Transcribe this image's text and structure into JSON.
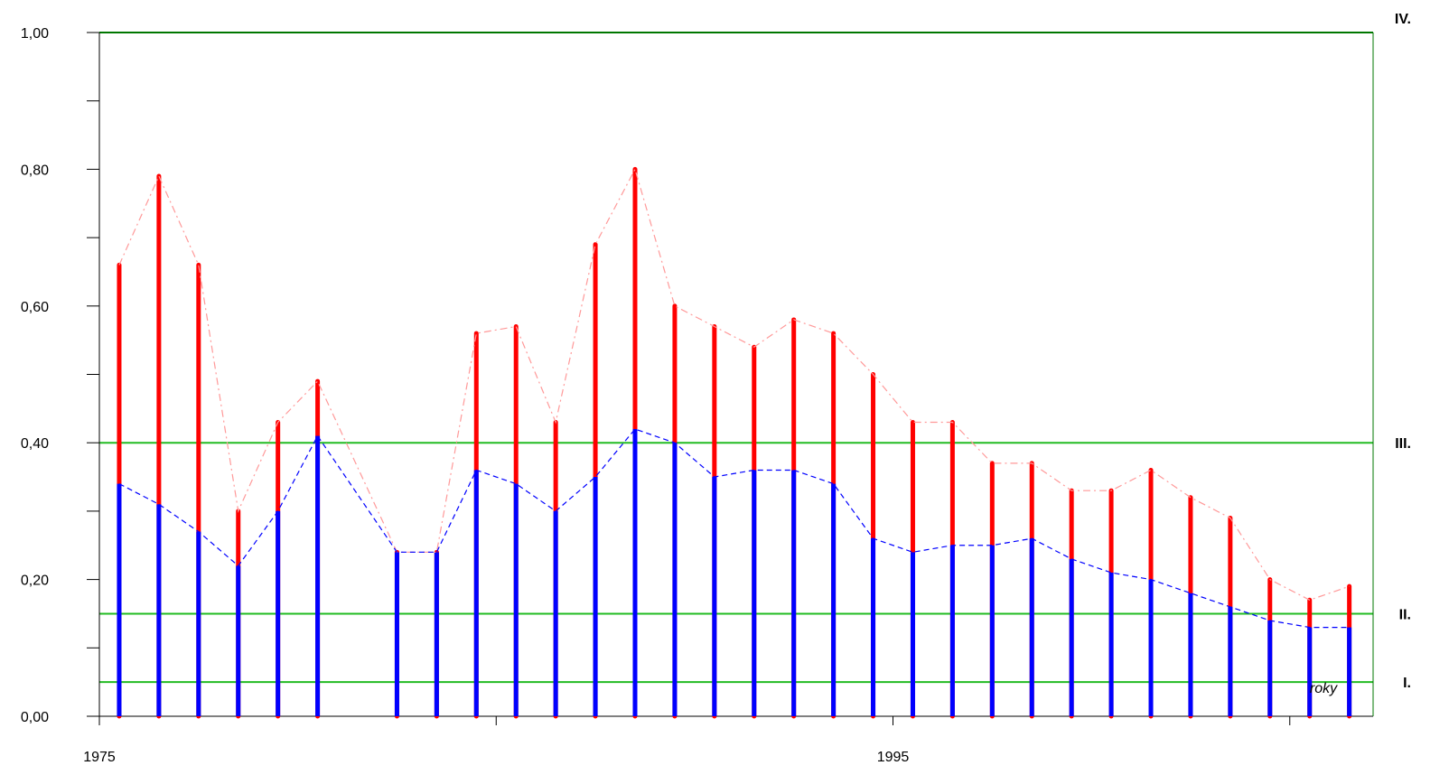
{
  "chart_data": {
    "type": "bar",
    "title": "",
    "xlabel": "roky",
    "ylabel": "",
    "xlim": [
      1975,
      2007.1
    ],
    "ylim": [
      0,
      1.0
    ],
    "y_ticks": [
      "0,00",
      "0,20",
      "0,40",
      "0,60",
      "0,80",
      "1,00"
    ],
    "y_tick_values": [
      0,
      0.2,
      0.4,
      0.6,
      0.8,
      1.0
    ],
    "x_ticks": [
      1975,
      1995
    ],
    "x_tick_labels": [
      "1975",
      "1995"
    ],
    "x_minor_ticks": [
      1985,
      2005
    ],
    "colors": {
      "max_bar": "#ff0000",
      "mean_bar": "#0000ff",
      "max_line": "#ff9999",
      "mean_line": "#0000ff",
      "zone_line": "#22bb22",
      "top_line": "#007700"
    },
    "thresholds": [
      {
        "label": "IV.",
        "value": 1.0
      },
      {
        "label": "III.",
        "value": 0.4
      },
      {
        "label": "II.",
        "value": 0.15
      },
      {
        "label": "I.",
        "value": 0.05
      }
    ],
    "x": [
      1975.5,
      1976.5,
      1977.5,
      1978.5,
      1979.5,
      1980.5,
      1982.5,
      1983.5,
      1984.5,
      1985.5,
      1986.5,
      1987.5,
      1988.5,
      1989.5,
      1990.5,
      1991.5,
      1992.5,
      1993.5,
      1994.5,
      1995.5,
      1996.5,
      1997.5,
      1998.5,
      1999.5,
      2000.5,
      2001.5,
      2002.5,
      2003.5,
      2004.5,
      2005.5,
      2006.5
    ],
    "series": [
      {
        "values": [
          0.66,
          0.79,
          0.66,
          0.3,
          0.43,
          0.49,
          0.24,
          0.24,
          0.56,
          0.57,
          0.43,
          0.69,
          0.8,
          0.6,
          0.57,
          0.54,
          0.58,
          0.56,
          0.5,
          0.43,
          0.43,
          0.37,
          0.37,
          0.33,
          0.33,
          0.36,
          0.32,
          0.29,
          0.2,
          0.17,
          0.19
        ]
      },
      {
        "values": [
          0.34,
          0.31,
          0.27,
          0.22,
          0.3,
          0.41,
          0.24,
          0.24,
          0.36,
          0.34,
          0.3,
          0.35,
          0.42,
          0.4,
          0.35,
          0.36,
          0.36,
          0.34,
          0.26,
          0.24,
          0.25,
          0.25,
          0.26,
          0.23,
          0.21,
          0.2,
          0.18,
          0.16,
          0.14,
          0.13,
          0.13
        ]
      }
    ]
  }
}
